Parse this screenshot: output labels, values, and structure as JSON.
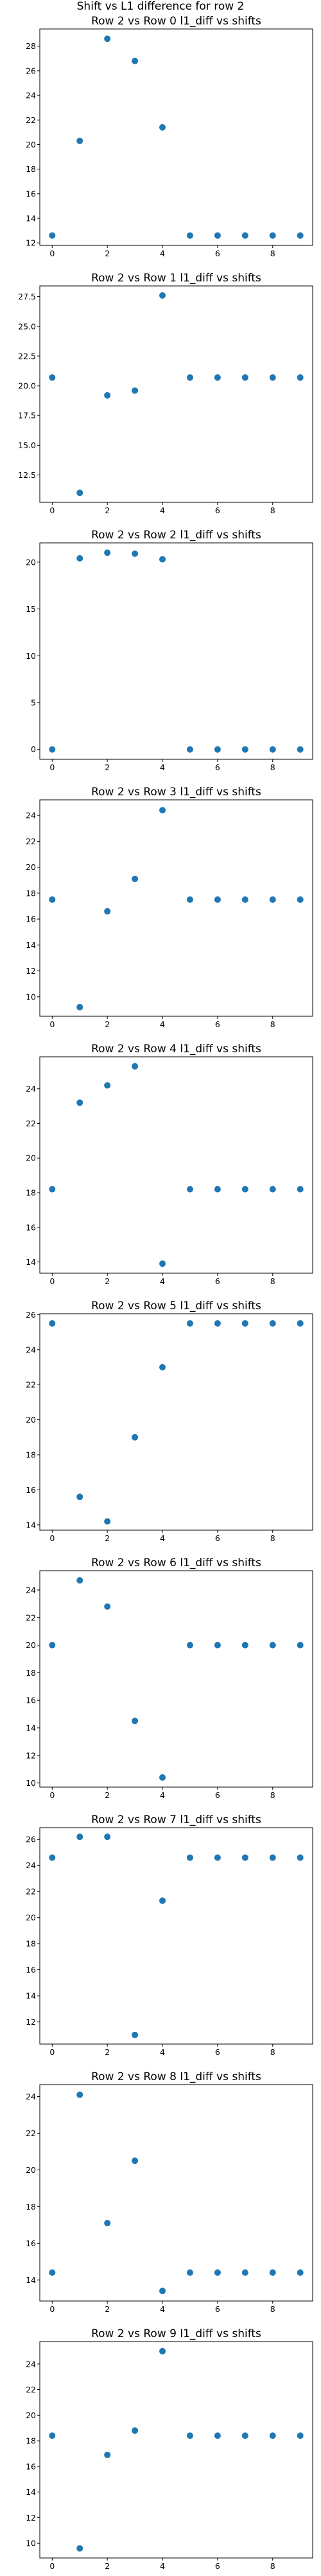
{
  "figure": {
    "suptitle": "Shift vs L1 difference for row 2"
  },
  "chart_data": [
    {
      "type": "scatter",
      "title": "Row 2 vs Row 0 l1_diff vs shifts",
      "xlabel": "",
      "ylabel": "",
      "x": [
        0,
        1,
        2,
        3,
        4,
        5,
        6,
        7,
        8,
        9
      ],
      "y": [
        12.6,
        20.3,
        28.6,
        26.8,
        21.4,
        12.6,
        12.6,
        12.6,
        12.6,
        12.6
      ],
      "xlim": [
        -0.45,
        9.45
      ],
      "ylim": [
        11.8,
        29.4
      ],
      "xticks": [
        0,
        2,
        4,
        6,
        8
      ],
      "yticks": [
        12,
        14,
        16,
        18,
        20,
        22,
        24,
        26,
        28
      ],
      "ytick_labels": [
        "12",
        "14",
        "16",
        "18",
        "20",
        "22",
        "24",
        "26",
        "28"
      ],
      "marker_color": "#1f77b4"
    },
    {
      "type": "scatter",
      "title": "Row 2 vs Row 1 l1_diff vs shifts",
      "xlabel": "",
      "ylabel": "",
      "x": [
        0,
        1,
        2,
        3,
        4,
        5,
        6,
        7,
        8,
        9
      ],
      "y": [
        20.7,
        11.0,
        19.2,
        19.6,
        27.6,
        20.7,
        20.7,
        20.7,
        20.7,
        20.7
      ],
      "xlim": [
        -0.45,
        9.45
      ],
      "ylim": [
        10.2,
        28.4
      ],
      "xticks": [
        0,
        2,
        4,
        6,
        8
      ],
      "yticks": [
        12.5,
        15.0,
        17.5,
        20.0,
        22.5,
        25.0,
        27.5
      ],
      "ytick_labels": [
        "12.5",
        "15.0",
        "17.5",
        "20.0",
        "22.5",
        "25.0",
        "27.5"
      ],
      "marker_color": "#1f77b4"
    },
    {
      "type": "scatter",
      "title": "Row 2 vs Row 2 l1_diff vs shifts",
      "xlabel": "",
      "ylabel": "",
      "x": [
        0,
        1,
        2,
        3,
        4,
        5,
        6,
        7,
        8,
        9
      ],
      "y": [
        0,
        20.4,
        21.0,
        20.9,
        20.3,
        0,
        0,
        0,
        0,
        0
      ],
      "xlim": [
        -0.45,
        9.45
      ],
      "ylim": [
        -1.05,
        22.05
      ],
      "xticks": [
        0,
        2,
        4,
        6,
        8
      ],
      "yticks": [
        0,
        5,
        10,
        15,
        20
      ],
      "ytick_labels": [
        "0",
        "5",
        "10",
        "15",
        "20"
      ],
      "marker_color": "#1f77b4"
    },
    {
      "type": "scatter",
      "title": "Row 2 vs Row 3 l1_diff vs shifts",
      "xlabel": "",
      "ylabel": "",
      "x": [
        0,
        1,
        2,
        3,
        4,
        5,
        6,
        7,
        8,
        9
      ],
      "y": [
        17.5,
        9.2,
        16.6,
        19.1,
        24.4,
        17.5,
        17.5,
        17.5,
        17.5,
        17.5
      ],
      "xlim": [
        -0.45,
        9.45
      ],
      "ylim": [
        8.5,
        25.2
      ],
      "xticks": [
        0,
        2,
        4,
        6,
        8
      ],
      "yticks": [
        10,
        12,
        14,
        16,
        18,
        20,
        22,
        24
      ],
      "ytick_labels": [
        "10",
        "12",
        "14",
        "16",
        "18",
        "20",
        "22",
        "24"
      ],
      "marker_color": "#1f77b4"
    },
    {
      "type": "scatter",
      "title": "Row 2 vs Row 4 l1_diff vs shifts",
      "xlabel": "",
      "ylabel": "",
      "x": [
        0,
        1,
        2,
        3,
        4,
        5,
        6,
        7,
        8,
        9
      ],
      "y": [
        18.2,
        23.2,
        24.2,
        25.3,
        13.9,
        18.2,
        18.2,
        18.2,
        18.2,
        18.2
      ],
      "xlim": [
        -0.45,
        9.45
      ],
      "ylim": [
        13.35,
        25.85
      ],
      "xticks": [
        0,
        2,
        4,
        6,
        8
      ],
      "yticks": [
        14,
        16,
        18,
        20,
        22,
        24
      ],
      "ytick_labels": [
        "14",
        "16",
        "18",
        "20",
        "22",
        "24"
      ],
      "marker_color": "#1f77b4"
    },
    {
      "type": "scatter",
      "title": "Row 2 vs Row 5 l1_diff vs shifts",
      "xlabel": "",
      "ylabel": "",
      "x": [
        0,
        1,
        2,
        3,
        4,
        5,
        6,
        7,
        8,
        9
      ],
      "y": [
        25.5,
        15.6,
        14.2,
        19.0,
        23.0,
        25.5,
        25.5,
        25.5,
        25.5,
        25.5
      ],
      "xlim": [
        -0.45,
        9.45
      ],
      "ylim": [
        13.7,
        26.05
      ],
      "xticks": [
        0,
        2,
        4,
        6,
        8
      ],
      "yticks": [
        14,
        16,
        18,
        20,
        22,
        24,
        26
      ],
      "ytick_labels": [
        "14",
        "16",
        "18",
        "20",
        "22",
        "24",
        "26"
      ],
      "marker_color": "#1f77b4"
    },
    {
      "type": "scatter",
      "title": "Row 2 vs Row 6 l1_diff vs shifts",
      "xlabel": "",
      "ylabel": "",
      "x": [
        0,
        1,
        2,
        3,
        4,
        5,
        6,
        7,
        8,
        9
      ],
      "y": [
        20.0,
        24.7,
        22.8,
        14.5,
        10.4,
        20.0,
        20.0,
        20.0,
        20.0,
        20.0
      ],
      "xlim": [
        -0.45,
        9.45
      ],
      "ylim": [
        9.7,
        25.4
      ],
      "xticks": [
        0,
        2,
        4,
        6,
        8
      ],
      "yticks": [
        10,
        12,
        14,
        16,
        18,
        20,
        22,
        24
      ],
      "ytick_labels": [
        "10",
        "12",
        "14",
        "16",
        "18",
        "20",
        "22",
        "24"
      ],
      "marker_color": "#1f77b4"
    },
    {
      "type": "scatter",
      "title": "Row 2 vs Row 7 l1_diff vs shifts",
      "xlabel": "",
      "ylabel": "",
      "x": [
        0,
        1,
        2,
        3,
        4,
        5,
        6,
        7,
        8,
        9
      ],
      "y": [
        24.6,
        26.2,
        26.2,
        11.0,
        21.3,
        24.6,
        24.6,
        24.6,
        24.6,
        24.6
      ],
      "xlim": [
        -0.45,
        9.45
      ],
      "ylim": [
        10.3,
        26.9
      ],
      "xticks": [
        0,
        2,
        4,
        6,
        8
      ],
      "yticks": [
        12,
        14,
        16,
        18,
        20,
        22,
        24,
        26
      ],
      "ytick_labels": [
        "12",
        "14",
        "16",
        "18",
        "20",
        "22",
        "24",
        "26"
      ],
      "marker_color": "#1f77b4"
    },
    {
      "type": "scatter",
      "title": "Row 2 vs Row 8 l1_diff vs shifts",
      "xlabel": "",
      "ylabel": "",
      "x": [
        0,
        1,
        2,
        3,
        4,
        5,
        6,
        7,
        8,
        9
      ],
      "y": [
        14.4,
        24.1,
        17.1,
        20.5,
        13.4,
        14.4,
        14.4,
        14.4,
        14.4,
        14.4
      ],
      "xlim": [
        -0.45,
        9.45
      ],
      "ylim": [
        12.85,
        24.65
      ],
      "xticks": [
        0,
        2,
        4,
        6,
        8
      ],
      "yticks": [
        14,
        16,
        18,
        20,
        22,
        24
      ],
      "ytick_labels": [
        "14",
        "16",
        "18",
        "20",
        "22",
        "24"
      ],
      "marker_color": "#1f77b4"
    },
    {
      "type": "scatter",
      "title": "Row 2 vs Row 9 l1_diff vs shifts",
      "xlabel": "",
      "ylabel": "",
      "x": [
        0,
        1,
        2,
        3,
        4,
        5,
        6,
        7,
        8,
        9
      ],
      "y": [
        18.4,
        9.6,
        16.9,
        18.8,
        25.0,
        18.4,
        18.4,
        18.4,
        18.4,
        18.4
      ],
      "xlim": [
        -0.45,
        9.45
      ],
      "ylim": [
        8.85,
        25.75
      ],
      "xticks": [
        0,
        2,
        4,
        6,
        8
      ],
      "yticks": [
        10,
        12,
        14,
        16,
        18,
        20,
        22,
        24
      ],
      "ytick_labels": [
        "10",
        "12",
        "14",
        "16",
        "18",
        "20",
        "22",
        "24"
      ],
      "marker_color": "#1f77b4"
    }
  ]
}
